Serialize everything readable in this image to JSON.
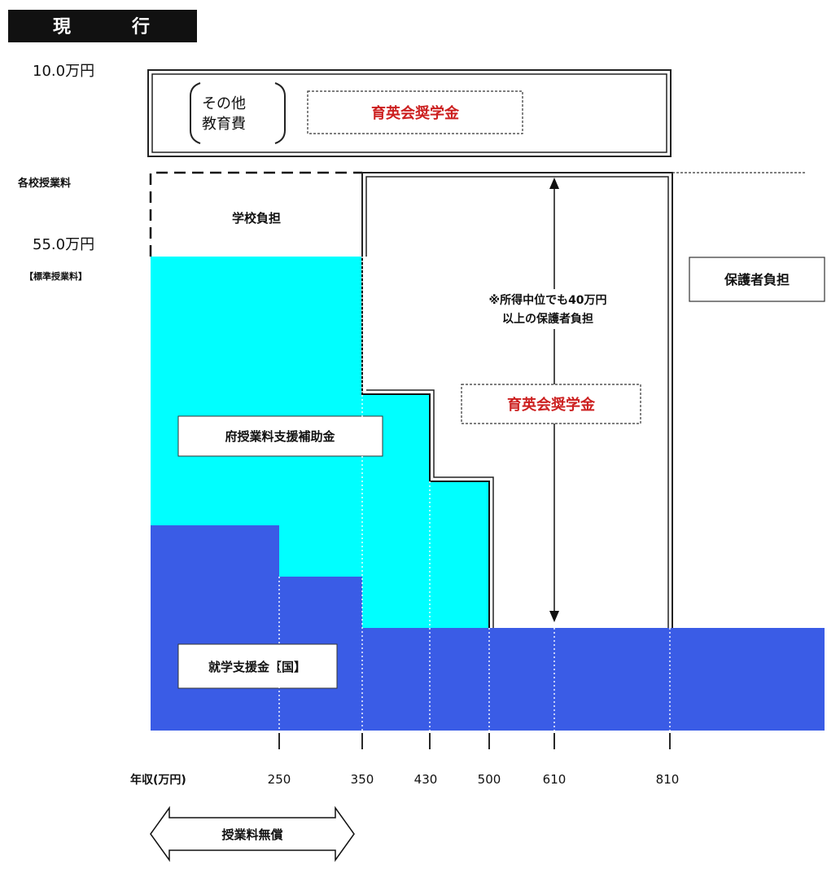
{
  "header": {
    "title_chars": [
      "現",
      "行"
    ]
  },
  "y_labels": {
    "top": "10.0万円",
    "school_tuition": "各校授業料",
    "standard_amount": "55.0万円",
    "standard_note": "【標準授業料】"
  },
  "top_box": {
    "other_costs_line1": "その他",
    "other_costs_line2": "教育費",
    "scholarship": "育英会奨学金"
  },
  "labels": {
    "school_burden": "学校負担",
    "guardian_burden": "保護者負担",
    "note_line1": "※所得中位でも40万円",
    "note_line2": "以上の保護者負担",
    "scholarship": "育英会奨学金",
    "prefecture_subsidy": "府授業料支援補助金",
    "national_support": "就学支援金【国】",
    "free_tuition": "授業料無償"
  },
  "x_axis": {
    "label": "年収(万円)",
    "ticks": [
      "250",
      "350",
      "430",
      "500",
      "610",
      "810"
    ]
  },
  "colors": {
    "national": "#3a5ce6",
    "prefecture": "#00ffff",
    "scholarship_text": "#cc1f1f",
    "header_bg": "#111111"
  }
}
